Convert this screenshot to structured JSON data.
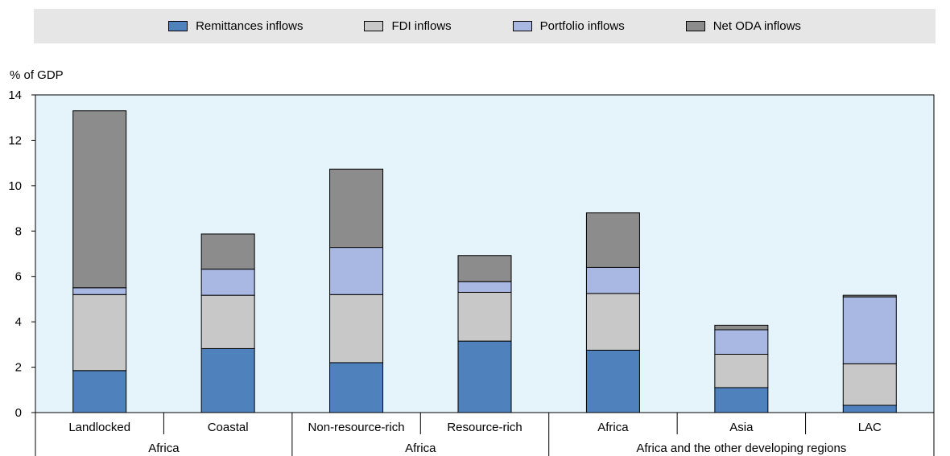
{
  "colors": {
    "plot_bg": "#e5f4fb",
    "remittances": "#4f81bd",
    "fdi": "#c8c8c8",
    "portfolio": "#a9b8e3",
    "oda": "#8c8c8c"
  },
  "legend": {
    "items": [
      {
        "label": "Remittances inflows",
        "color": "#4f81bd"
      },
      {
        "label": "FDI inflows",
        "color": "#c8c8c8"
      },
      {
        "label": "Portfolio inflows",
        "color": "#a9b8e3"
      },
      {
        "label": "Net ODA inflows",
        "color": "#8c8c8c"
      }
    ]
  },
  "chart_data": {
    "type": "bar",
    "stacked": true,
    "ylabel": "% of GDP",
    "ylim": [
      0,
      14
    ],
    "yticks": [
      0,
      2,
      4,
      6,
      8,
      10,
      12,
      14
    ],
    "categories": [
      "Landlocked",
      "Coastal",
      "Non-resource-rich",
      "Resource-rich",
      "Africa",
      "Asia",
      "LAC"
    ],
    "groups": [
      {
        "label": "Africa",
        "members": [
          0,
          1
        ]
      },
      {
        "label": "Africa",
        "members": [
          2,
          3
        ]
      },
      {
        "label": "Africa and the other developing regions",
        "members": [
          4,
          5,
          6
        ]
      }
    ],
    "series": [
      {
        "name": "Remittances inflows",
        "color": "#4f81bd",
        "values": [
          1.85,
          2.82,
          2.2,
          3.15,
          2.75,
          1.1,
          0.32
        ]
      },
      {
        "name": "FDI inflows",
        "color": "#c8c8c8",
        "values": [
          3.35,
          2.35,
          3.0,
          2.15,
          2.5,
          1.47,
          1.83
        ]
      },
      {
        "name": "Portfolio inflows",
        "color": "#a9b8e3",
        "values": [
          0.3,
          1.15,
          2.08,
          0.47,
          1.15,
          1.08,
          2.95
        ]
      },
      {
        "name": "Net ODA inflows",
        "color": "#8c8c8c",
        "values": [
          7.8,
          1.55,
          3.45,
          1.15,
          2.4,
          0.2,
          0.07
        ]
      }
    ]
  }
}
